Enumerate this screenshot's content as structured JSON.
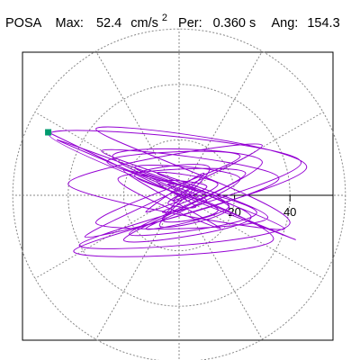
{
  "header": {
    "station": "POSA",
    "max_label": "Max:",
    "max_value": "52.4",
    "max_unit": "cm/s",
    "max_unit_exp": "2",
    "per_label": "Per:",
    "per_value": "0.360 s",
    "ang_label": "Ang:",
    "ang_value": "154.3"
  },
  "chart_data": {
    "type": "scatter",
    "title": "",
    "xlabel": "",
    "ylabel": "",
    "unit": "cm/s²",
    "rlim": [
      0,
      60
    ],
    "polar_grid": {
      "rings": [
        20,
        40,
        60
      ],
      "spokes_deg": [
        0,
        30,
        60,
        90,
        120,
        150,
        180,
        210,
        240,
        270,
        300,
        330
      ]
    },
    "tick_labels": [
      "20",
      "40"
    ],
    "max_point": {
      "value": 52.4,
      "angle_deg": 154.3
    },
    "series": [
      {
        "color": "#9400d3",
        "x": [
          0,
          3,
          -4,
          6,
          -8,
          10,
          -12,
          9,
          -6,
          14,
          -16,
          11,
          -7,
          18,
          -20,
          15,
          -22,
          24,
          -18,
          28,
          -26,
          22,
          -30,
          32,
          -28,
          36,
          -34,
          30,
          -40,
          38,
          -44,
          42,
          -47,
          44,
          -36,
          40,
          -30,
          46,
          -38,
          34,
          -24,
          30,
          -20,
          26,
          -16,
          22,
          -12,
          18,
          -8,
          14,
          -6,
          10,
          -4,
          6,
          -2,
          0
        ],
        "y": [
          0,
          2,
          -3,
          -4,
          5,
          3,
          -6,
          8,
          -9,
          -5,
          7,
          10,
          -11,
          -4,
          9,
          -12,
          6,
          8,
          -14,
          -6,
          12,
          14,
          -10,
          -8,
          16,
          6,
          -15,
          18,
          4,
          -12,
          20,
          -16,
          22,
          12,
          -18,
          -10,
          24,
          10,
          -20,
          -16,
          14,
          12,
          -16,
          -8,
          10,
          6,
          -12,
          -4,
          8,
          4,
          -6,
          -2,
          4,
          2,
          -2,
          0
        ]
      }
    ]
  }
}
